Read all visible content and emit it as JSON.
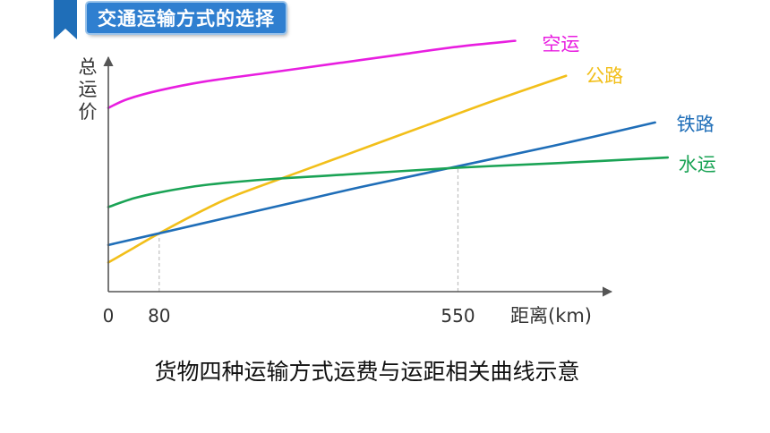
{
  "header": {
    "section_title": "交通运输方式的选择"
  },
  "caption": "货物四种运输方式运费与运距相关曲线示意",
  "chart_data": {
    "type": "line",
    "title": "货物四种运输方式运费与运距相关曲线示意",
    "ylabel": "总运价",
    "xlabel": "距离(km)",
    "x_ticks": [
      0,
      80,
      550
    ],
    "xlim": [
      0,
      800
    ],
    "ylim": [
      0,
      100
    ],
    "y_tick_labels_shown": false,
    "grid": false,
    "reference_lines": [
      80,
      550
    ],
    "series": [
      {
        "name": "空运",
        "color": "#e81ee0",
        "points": [
          [
            0,
            63
          ],
          [
            30,
            66
          ],
          [
            80,
            69
          ],
          [
            150,
            72
          ],
          [
            250,
            75
          ],
          [
            350,
            78
          ],
          [
            450,
            81
          ],
          [
            550,
            84
          ],
          [
            640,
            86
          ]
        ]
      },
      {
        "name": "公路",
        "color": "#f2bf1a",
        "points": [
          [
            0,
            10
          ],
          [
            40,
            15
          ],
          [
            80,
            20
          ],
          [
            150,
            28
          ],
          [
            200,
            33
          ],
          [
            300,
            41
          ],
          [
            400,
            49
          ],
          [
            500,
            57
          ],
          [
            600,
            65
          ],
          [
            720,
            74
          ]
        ]
      },
      {
        "name": "铁路",
        "color": "#1f6eb8",
        "points": [
          [
            0,
            16
          ],
          [
            80,
            20
          ],
          [
            200,
            26
          ],
          [
            300,
            31
          ],
          [
            400,
            36
          ],
          [
            550,
            43
          ],
          [
            700,
            50
          ],
          [
            860,
            58
          ]
        ]
      },
      {
        "name": "水运",
        "color": "#1aa355",
        "points": [
          [
            0,
            29
          ],
          [
            40,
            32
          ],
          [
            80,
            34
          ],
          [
            150,
            36.5
          ],
          [
            250,
            38.5
          ],
          [
            400,
            40.5
          ],
          [
            550,
            42.5
          ],
          [
            700,
            44
          ],
          [
            880,
            46
          ]
        ]
      }
    ]
  }
}
